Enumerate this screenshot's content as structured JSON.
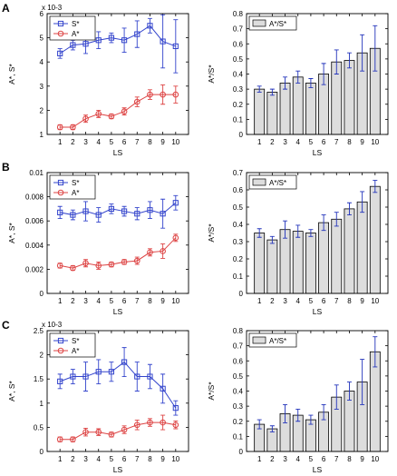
{
  "panel_letters": [
    "A",
    "B",
    "C"
  ],
  "colors": {
    "s_series": "#3344cc",
    "a_series": "#dd4444",
    "bar_fill": "#dddddd",
    "errbar": "#2233bb"
  },
  "chart_data": [
    {
      "type": "line",
      "panel": "A",
      "xlabel": "LS",
      "ylabel": "A*, S*",
      "ylim": [
        1,
        6
      ],
      "yticks": [
        "1",
        "2",
        "3",
        "4",
        "5",
        "6"
      ],
      "exponent": "x 10-3",
      "x": [
        1,
        2,
        3,
        4,
        5,
        6,
        7,
        8,
        9,
        10
      ],
      "legend": {
        "placement": "top-left"
      },
      "series": [
        {
          "name": "S*",
          "marker": "square",
          "values": [
            4.35,
            4.7,
            4.75,
            4.9,
            5.0,
            4.9,
            5.15,
            5.5,
            4.85,
            4.65
          ],
          "err": [
            0.2,
            0.2,
            0.4,
            0.35,
            0.2,
            0.5,
            0.55,
            0.3,
            1.1,
            1.1
          ]
        },
        {
          "name": "A*",
          "marker": "circle",
          "values": [
            1.3,
            1.3,
            1.65,
            1.85,
            1.75,
            1.95,
            2.35,
            2.65,
            2.65,
            2.65
          ],
          "err": [
            0.1,
            0.1,
            0.15,
            0.15,
            0.1,
            0.15,
            0.2,
            0.2,
            0.4,
            0.35
          ]
        }
      ]
    },
    {
      "type": "bar",
      "panel": "A",
      "xlabel": "LS",
      "ylabel": "A*/S*",
      "ylim": [
        0,
        0.8
      ],
      "yticks": [
        "0",
        "0.1",
        "0.2",
        "0.3",
        "0.4",
        "0.5",
        "0.6",
        "0.7",
        "0.8"
      ],
      "categories": [
        "1",
        "2",
        "3",
        "4",
        "5",
        "6",
        "7",
        "8",
        "9",
        "10"
      ],
      "legend": {
        "placement": "top-left",
        "label": "A*/S*"
      },
      "values": [
        0.3,
        0.28,
        0.34,
        0.38,
        0.34,
        0.4,
        0.48,
        0.49,
        0.54,
        0.57
      ],
      "err": [
        0.02,
        0.02,
        0.04,
        0.04,
        0.03,
        0.07,
        0.08,
        0.05,
        0.12,
        0.15
      ]
    },
    {
      "type": "line",
      "panel": "B",
      "xlabel": "LS",
      "ylabel": "A*, S*",
      "ylim": [
        0,
        0.01
      ],
      "yticks": [
        "0",
        "0.002",
        "0.004",
        "0.006",
        "0.008",
        "0.01"
      ],
      "x": [
        1,
        2,
        3,
        4,
        5,
        6,
        7,
        8,
        9,
        10
      ],
      "legend": {
        "placement": "top-left"
      },
      "series": [
        {
          "name": "S*",
          "marker": "square",
          "values": [
            0.0067,
            0.0065,
            0.0068,
            0.0065,
            0.007,
            0.0068,
            0.0066,
            0.0069,
            0.0066,
            0.0075
          ],
          "err": [
            0.0005,
            0.0004,
            0.0008,
            0.0006,
            0.0004,
            0.0004,
            0.0005,
            0.0007,
            0.0012,
            0.0006
          ]
        },
        {
          "name": "A*",
          "marker": "circle",
          "values": [
            0.0023,
            0.0021,
            0.0025,
            0.0023,
            0.0024,
            0.0026,
            0.0027,
            0.0034,
            0.0035,
            0.0046
          ],
          "err": [
            0.0002,
            0.0002,
            0.0003,
            0.0003,
            0.0002,
            0.0002,
            0.0003,
            0.0003,
            0.0006,
            0.0003
          ]
        }
      ]
    },
    {
      "type": "bar",
      "panel": "B",
      "xlabel": "LS",
      "ylabel": "A*/S*",
      "ylim": [
        0,
        0.7
      ],
      "yticks": [
        "0",
        "0.1",
        "0.2",
        "0.3",
        "0.4",
        "0.5",
        "0.6",
        "0.7"
      ],
      "categories": [
        "1",
        "2",
        "3",
        "4",
        "5",
        "6",
        "7",
        "8",
        "9",
        "10"
      ],
      "legend": {
        "placement": "top-left",
        "label": "A*/S*"
      },
      "values": [
        0.35,
        0.31,
        0.37,
        0.36,
        0.35,
        0.41,
        0.43,
        0.49,
        0.53,
        0.62
      ],
      "err": [
        0.025,
        0.02,
        0.05,
        0.035,
        0.02,
        0.045,
        0.04,
        0.035,
        0.06,
        0.035
      ]
    },
    {
      "type": "line",
      "panel": "C",
      "xlabel": "LS",
      "ylabel": "A*, S*",
      "ylim": [
        0,
        2.5
      ],
      "yticks": [
        "0",
        "0.5",
        "1",
        "1.5",
        "2",
        "2.5"
      ],
      "exponent": "x 10-3",
      "x": [
        1,
        2,
        3,
        4,
        5,
        6,
        7,
        8,
        9,
        10
      ],
      "legend": {
        "placement": "top-left"
      },
      "series": [
        {
          "name": "S*",
          "marker": "square",
          "values": [
            1.45,
            1.55,
            1.55,
            1.65,
            1.65,
            1.85,
            1.55,
            1.55,
            1.3,
            0.9
          ],
          "err": [
            0.15,
            0.15,
            0.3,
            0.25,
            0.2,
            0.3,
            0.3,
            0.25,
            0.3,
            0.15
          ]
        },
        {
          "name": "A*",
          "marker": "circle",
          "values": [
            0.25,
            0.25,
            0.4,
            0.4,
            0.35,
            0.45,
            0.55,
            0.6,
            0.6,
            0.55
          ],
          "err": [
            0.05,
            0.05,
            0.08,
            0.07,
            0.05,
            0.08,
            0.1,
            0.08,
            0.15,
            0.08
          ]
        }
      ]
    },
    {
      "type": "bar",
      "panel": "C",
      "xlabel": "LS",
      "ylabel": "A*/S*",
      "ylim": [
        0,
        0.8
      ],
      "yticks": [
        "0",
        "0.1",
        "0.2",
        "0.3",
        "0.4",
        "0.5",
        "0.6",
        "0.7",
        "0.8"
      ],
      "categories": [
        "1",
        "2",
        "3",
        "4",
        "5",
        "6",
        "7",
        "8",
        "9",
        "10"
      ],
      "legend": {
        "placement": "top-left",
        "label": "A*/S*"
      },
      "values": [
        0.18,
        0.15,
        0.25,
        0.24,
        0.21,
        0.26,
        0.36,
        0.4,
        0.46,
        0.66
      ],
      "err": [
        0.03,
        0.02,
        0.06,
        0.04,
        0.03,
        0.05,
        0.08,
        0.06,
        0.15,
        0.1
      ]
    }
  ]
}
